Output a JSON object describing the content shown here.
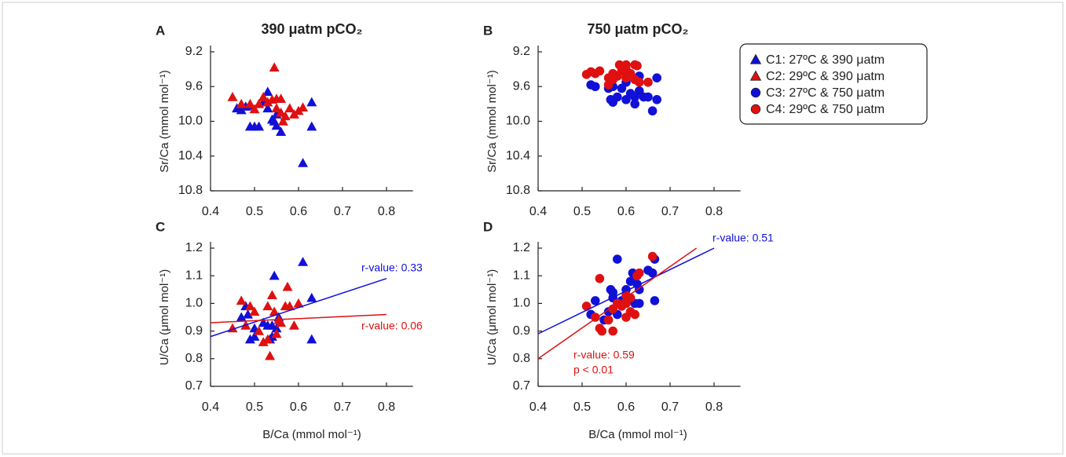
{
  "chart_data": [
    {
      "type": "scatter",
      "panel_label": "A",
      "title": "390 μatm pCO₂",
      "y_label": "Sr/Ca (mmol mol⁻¹)",
      "xlim": [
        0.4,
        0.86
      ],
      "xticks": [
        0.4,
        0.5,
        0.6,
        0.7,
        0.8
      ],
      "ylim": [
        10.8,
        9.2
      ],
      "yticks": [
        9.2,
        9.6,
        {
          "value": 10,
          "label": "10.0"
        },
        10.4,
        10.8
      ],
      "series": [
        {
          "name": "C1: 27ºC & 390 μatm",
          "color": "#1010d8",
          "marker": "triangle",
          "x": [
            0.53,
            0.52,
            0.48,
            0.47,
            0.49,
            0.5,
            0.49,
            0.54,
            0.545,
            0.55,
            0.56,
            0.63,
            0.63,
            0.61,
            0.53,
            0.55,
            0.51,
            0.46
          ],
          "values": [
            9.66,
            9.78,
            9.83,
            9.87,
            9.82,
            10.06,
            10.06,
            9.98,
            10.0,
            10.05,
            10.12,
            9.78,
            10.06,
            10.48,
            9.85,
            9.92,
            10.06,
            9.85
          ]
        },
        {
          "name": "C2: 29ºC & 390 μatm",
          "color": "#e01010",
          "marker": "triangle",
          "x": [
            0.45,
            0.47,
            0.49,
            0.51,
            0.52,
            0.53,
            0.54,
            0.545,
            0.55,
            0.56,
            0.56,
            0.57,
            0.58,
            0.59,
            0.6,
            0.55,
            0.565,
            0.61,
            0.5
          ],
          "values": [
            9.72,
            9.8,
            9.8,
            9.8,
            9.72,
            9.78,
            9.75,
            9.38,
            9.74,
            9.74,
            9.9,
            9.94,
            9.85,
            9.92,
            9.88,
            9.85,
            10.0,
            9.84,
            9.86
          ]
        }
      ]
    },
    {
      "type": "scatter",
      "panel_label": "B",
      "title": "750 μatm pCO₂",
      "y_label": "Sr/Ca (mmol mol⁻¹)",
      "xlim": [
        0.4,
        0.86
      ],
      "xticks": [
        0.4,
        0.5,
        0.6,
        0.7,
        0.8
      ],
      "ylim": [
        10.8,
        9.2
      ],
      "yticks": [
        9.2,
        9.6,
        {
          "value": 10,
          "label": "10.0"
        },
        10.4,
        10.8
      ],
      "series": [
        {
          "name": "C3: 27ºC & 750 μatm",
          "color": "#1010d8",
          "marker": "circle",
          "x": [
            0.52,
            0.53,
            0.56,
            0.57,
            0.565,
            0.57,
            0.58,
            0.6,
            0.61,
            0.62,
            0.62,
            0.63,
            0.63,
            0.64,
            0.65,
            0.66,
            0.67,
            0.67,
            0.59,
            0.6
          ],
          "values": [
            9.58,
            9.6,
            9.62,
            9.6,
            9.75,
            9.78,
            9.72,
            9.75,
            9.68,
            9.72,
            9.8,
            9.65,
            9.48,
            9.72,
            9.72,
            9.88,
            9.75,
            9.5,
            9.62,
            9.55
          ]
        },
        {
          "name": "C4: 29ºC & 750 μatm",
          "color": "#e01010",
          "marker": "circle",
          "x": [
            0.51,
            0.52,
            0.53,
            0.54,
            0.56,
            0.57,
            0.58,
            0.585,
            0.59,
            0.6,
            0.6,
            0.61,
            0.62,
            0.625,
            0.62,
            0.63,
            0.65,
            0.56,
            0.6,
            0.57
          ],
          "values": [
            9.46,
            9.43,
            9.45,
            9.42,
            9.5,
            9.45,
            9.48,
            9.35,
            9.42,
            9.35,
            9.5,
            9.45,
            9.35,
            9.36,
            9.52,
            9.55,
            9.55,
            9.58,
            9.4,
            9.52
          ]
        }
      ]
    },
    {
      "type": "scatter",
      "panel_label": "C",
      "y_label": "U/Ca (μmol mol⁻¹)",
      "x_label": "B/Ca (mmol mol⁻¹)",
      "xlim": [
        0.4,
        0.86
      ],
      "xticks": [
        0.4,
        0.5,
        0.6,
        0.7,
        0.8
      ],
      "ylim": [
        0.7,
        1.2
      ],
      "yticks": [
        0.7,
        0.8,
        0.9,
        {
          "value": 1,
          "label": "1.0"
        },
        1.1,
        1.2
      ],
      "series": [
        {
          "color": "#1010d8",
          "marker": "triangle",
          "x": [
            0.47,
            0.48,
            0.49,
            0.5,
            0.5,
            0.52,
            0.53,
            0.535,
            0.54,
            0.545,
            0.55,
            0.555,
            0.61,
            0.63,
            0.63,
            0.54,
            0.485
          ],
          "values": [
            0.95,
            0.99,
            0.87,
            0.91,
            0.88,
            0.93,
            0.92,
            0.87,
            0.88,
            1.1,
            0.91,
            0.95,
            1.15,
            1.02,
            0.87,
            0.92,
            0.96
          ]
        },
        {
          "color": "#e01010",
          "marker": "triangle",
          "x": [
            0.45,
            0.47,
            0.48,
            0.49,
            0.5,
            0.51,
            0.52,
            0.53,
            0.535,
            0.54,
            0.545,
            0.55,
            0.56,
            0.57,
            0.575,
            0.58,
            0.59,
            0.6,
            0.53,
            0.555
          ],
          "values": [
            0.91,
            1.01,
            0.92,
            0.99,
            0.97,
            0.9,
            0.86,
            0.99,
            0.81,
            1.03,
            0.97,
            0.89,
            0.93,
            0.99,
            1.06,
            0.99,
            0.92,
            1.0,
            0.87,
            0.94
          ]
        }
      ],
      "fits": [
        {
          "color": "#1010d8",
          "x": [
            0.4,
            0.8
          ],
          "values": [
            0.88,
            1.09
          ]
        },
        {
          "color": "#e01010",
          "x": [
            0.4,
            0.8
          ],
          "values": [
            0.93,
            0.96
          ]
        }
      ],
      "annotations": [
        {
          "text": "r-value: 0.33",
          "color": "#1010d8"
        },
        {
          "text": "r-value: 0.06",
          "color": "#e01010"
        }
      ]
    },
    {
      "type": "scatter",
      "panel_label": "D",
      "y_label": "U/Ca (μmol mol⁻¹)",
      "x_label": "B/Ca (mmol mol⁻¹)",
      "xlim": [
        0.4,
        0.86
      ],
      "xticks": [
        0.4,
        0.5,
        0.6,
        0.7,
        0.8
      ],
      "ylim": [
        0.7,
        1.2
      ],
      "yticks": [
        0.7,
        0.8,
        0.9,
        {
          "value": 1,
          "label": "1.0"
        },
        1.1,
        1.2
      ],
      "series": [
        {
          "color": "#1010d8",
          "marker": "circle",
          "x": [
            0.52,
            0.53,
            0.55,
            0.56,
            0.565,
            0.57,
            0.58,
            0.58,
            0.59,
            0.6,
            0.61,
            0.615,
            0.62,
            0.625,
            0.63,
            0.63,
            0.65,
            0.66,
            0.665,
            0.665,
            0.57
          ],
          "values": [
            0.96,
            1.01,
            0.94,
            0.97,
            1.05,
            1.04,
            0.96,
            1.16,
            1.01,
            1.05,
            1.08,
            1.11,
            1.0,
            1.07,
            1.0,
            1.05,
            1.12,
            1.11,
            1.16,
            1.01,
            1.02
          ]
        },
        {
          "color": "#e01010",
          "marker": "circle",
          "x": [
            0.51,
            0.53,
            0.54,
            0.54,
            0.545,
            0.56,
            0.57,
            0.58,
            0.59,
            0.6,
            0.6,
            0.61,
            0.61,
            0.62,
            0.625,
            0.63,
            0.66,
            0.57,
            0.6
          ],
          "values": [
            0.99,
            0.95,
            1.09,
            0.91,
            0.9,
            0.94,
            0.9,
            1.0,
            0.99,
            1.03,
            0.95,
            1.02,
            0.97,
            0.96,
            1.1,
            1.11,
            1.17,
            0.98,
            1.0
          ]
        }
      ],
      "fits": [
        {
          "color": "#1010d8",
          "x": [
            0.4,
            0.8
          ],
          "values": [
            0.89,
            1.2
          ]
        },
        {
          "color": "#e01010",
          "x": [
            0.4,
            0.76
          ],
          "values": [
            0.8,
            1.2
          ]
        }
      ],
      "annotations": [
        {
          "text": "r-value: 0.51",
          "color": "#1010d8"
        },
        {
          "text": "r-value: 0.59",
          "color": "#e01010"
        },
        {
          "text": "p < 0.01",
          "color": "#e01010"
        }
      ]
    }
  ]
}
